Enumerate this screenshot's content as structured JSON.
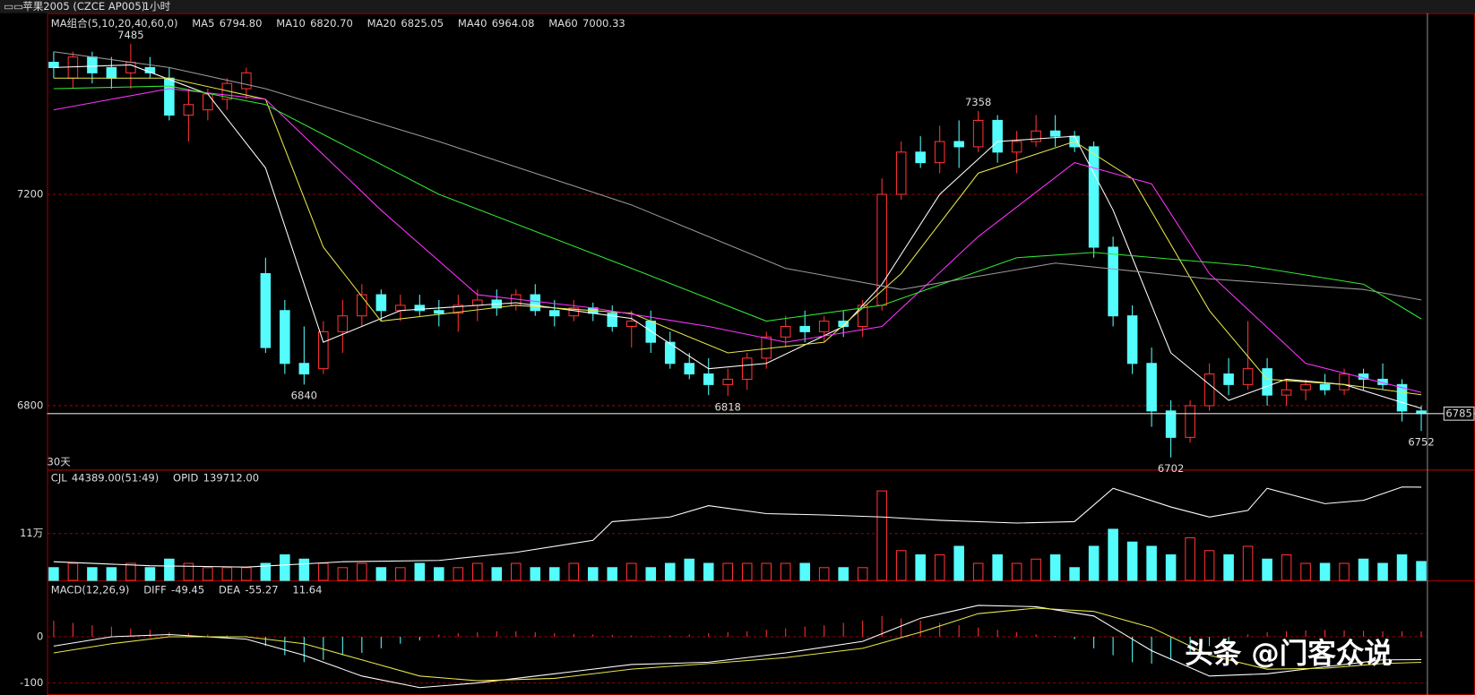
{
  "header": {
    "symbol": "苹果2005 (CZCE AP005)",
    "period": "1小时"
  },
  "chart_data": [
    {
      "type": "candlestick",
      "title": "MA组合(5,10,20,40,60,0)",
      "footnote": "30天",
      "up_color": "#ff3232",
      "down_color": "#54fcfc",
      "ylim": [
        6679,
        7543
      ],
      "yticks": [
        6800,
        7200
      ],
      "grid": true,
      "last_price": 6785,
      "ohlc": [
        [
          7450,
          7470,
          7420,
          7440
        ],
        [
          7420,
          7470,
          7400,
          7460
        ],
        [
          7460,
          7470,
          7410,
          7430
        ],
        [
          7440,
          7460,
          7400,
          7420
        ],
        [
          7430,
          7485,
          7400,
          7450
        ],
        [
          7440,
          7460,
          7420,
          7430
        ],
        [
          7420,
          7440,
          7340,
          7350
        ],
        [
          7350,
          7400,
          7300,
          7370
        ],
        [
          7360,
          7400,
          7340,
          7390
        ],
        [
          7380,
          7420,
          7360,
          7410
        ],
        [
          7400,
          7440,
          7380,
          7430
        ],
        [
          7050,
          7080,
          6900,
          6910
        ],
        [
          6980,
          7000,
          6860,
          6880
        ],
        [
          6880,
          6950,
          6840,
          6860
        ],
        [
          6870,
          6960,
          6860,
          6940
        ],
        [
          6940,
          7000,
          6900,
          6970
        ],
        [
          6970,
          7030,
          6950,
          7010
        ],
        [
          7010,
          7020,
          6960,
          6980
        ],
        [
          6980,
          7010,
          6960,
          6990
        ],
        [
          6990,
          7010,
          6970,
          6980
        ],
        [
          6980,
          7000,
          6950,
          6975
        ],
        [
          6975,
          7010,
          6940,
          6990
        ],
        [
          6990,
          7020,
          6960,
          7000
        ],
        [
          7000,
          7020,
          6970,
          6985
        ],
        [
          6990,
          7020,
          6980,
          7010
        ],
        [
          7010,
          7030,
          6970,
          6980
        ],
        [
          6980,
          7000,
          6950,
          6970
        ],
        [
          6970,
          7000,
          6960,
          6985
        ],
        [
          6985,
          6995,
          6960,
          6975
        ],
        [
          6975,
          6990,
          6940,
          6950
        ],
        [
          6950,
          6980,
          6910,
          6960
        ],
        [
          6960,
          6980,
          6900,
          6920
        ],
        [
          6920,
          6940,
          6870,
          6880
        ],
        [
          6880,
          6900,
          6850,
          6860
        ],
        [
          6860,
          6890,
          6820,
          6840
        ],
        [
          6840,
          6870,
          6818,
          6850
        ],
        [
          6850,
          6900,
          6830,
          6890
        ],
        [
          6890,
          6940,
          6870,
          6930
        ],
        [
          6930,
          6970,
          6910,
          6950
        ],
        [
          6950,
          6980,
          6920,
          6940
        ],
        [
          6940,
          6970,
          6920,
          6960
        ],
        [
          6960,
          6980,
          6930,
          6950
        ],
        [
          6950,
          7000,
          6930,
          6990
        ],
        [
          6990,
          7230,
          6980,
          7200
        ],
        [
          7200,
          7300,
          7190,
          7280
        ],
        [
          7280,
          7310,
          7250,
          7260
        ],
        [
          7260,
          7330,
          7240,
          7300
        ],
        [
          7300,
          7340,
          7250,
          7290
        ],
        [
          7290,
          7358,
          7280,
          7340
        ],
        [
          7340,
          7350,
          7260,
          7280
        ],
        [
          7280,
          7320,
          7240,
          7300
        ],
        [
          7300,
          7350,
          7290,
          7320
        ],
        [
          7320,
          7350,
          7290,
          7310
        ],
        [
          7310,
          7320,
          7280,
          7290
        ],
        [
          7290,
          7300,
          7080,
          7100
        ],
        [
          7100,
          7120,
          6950,
          6970
        ],
        [
          6970,
          6990,
          6860,
          6880
        ],
        [
          6880,
          6910,
          6760,
          6790
        ],
        [
          6790,
          6810,
          6702,
          6740
        ],
        [
          6740,
          6810,
          6730,
          6800
        ],
        [
          6800,
          6880,
          6790,
          6860
        ],
        [
          6860,
          6890,
          6820,
          6840
        ],
        [
          6840,
          6960,
          6830,
          6870
        ],
        [
          6870,
          6890,
          6800,
          6820
        ],
        [
          6820,
          6850,
          6800,
          6830
        ],
        [
          6830,
          6850,
          6810,
          6840
        ],
        [
          6840,
          6860,
          6820,
          6830
        ],
        [
          6830,
          6870,
          6820,
          6860
        ],
        [
          6860,
          6870,
          6830,
          6850
        ],
        [
          6850,
          6880,
          6830,
          6840
        ],
        [
          6840,
          6850,
          6770,
          6790
        ],
        [
          6790,
          6800,
          6752,
          6785
        ]
      ],
      "extremes": [
        {
          "index": 4,
          "value": 7485
        },
        {
          "index": 13,
          "value": 6840
        },
        {
          "index": 35,
          "value": 6818
        },
        {
          "index": 48,
          "value": 7358
        },
        {
          "index": 58,
          "value": 6702
        },
        {
          "index": 71,
          "value": 6752
        }
      ],
      "lines": [
        {
          "name": "MA5",
          "value_label": "6794.80",
          "color": "#ffffff",
          "x": [
            0,
            4,
            8,
            11,
            14,
            18,
            24,
            30,
            34,
            37,
            41,
            43,
            46,
            49,
            53,
            55,
            58,
            61,
            64,
            67,
            71
          ],
          "values": [
            7440,
            7445,
            7390,
            7250,
            6920,
            6980,
            6995,
            6965,
            6870,
            6880,
            6950,
            7030,
            7200,
            7300,
            7310,
            7170,
            6900,
            6810,
            6850,
            6840,
            6794.8
          ]
        },
        {
          "name": "MA10",
          "value_label": "6820.70",
          "color": "#e6e64c",
          "x": [
            0,
            6,
            11,
            14,
            17,
            24,
            30,
            35,
            40,
            44,
            48,
            53,
            56,
            60,
            63,
            67,
            71
          ],
          "values": [
            7420,
            7420,
            7380,
            7100,
            6960,
            6990,
            6975,
            6900,
            6920,
            7050,
            7240,
            7300,
            7230,
            6980,
            6850,
            6840,
            6820.7
          ]
        },
        {
          "name": "MA20",
          "value_label": "6825.05",
          "color": "#ff33ff",
          "x": [
            0,
            6,
            11,
            17,
            22,
            28,
            34,
            38,
            43,
            48,
            53,
            57,
            60,
            65,
            71
          ],
          "values": [
            7360,
            7400,
            7380,
            7170,
            7010,
            6985,
            6950,
            6920,
            6950,
            7120,
            7260,
            7220,
            7050,
            6880,
            6825.05
          ]
        },
        {
          "name": "MA40",
          "value_label": "6964.08",
          "color": "#33e633",
          "x": [
            0,
            6,
            11,
            20,
            30,
            37,
            43,
            50,
            54,
            62,
            68,
            71
          ],
          "values": [
            7400,
            7405,
            7370,
            7200,
            7060,
            6960,
            6990,
            7080,
            7090,
            7065,
            7030,
            6964.08
          ]
        },
        {
          "name": "MA60",
          "value_label": "7000.33",
          "color": "#999999",
          "x": [
            0,
            6,
            11,
            20,
            30,
            38,
            44,
            52,
            60,
            68,
            71
          ],
          "values": [
            7470,
            7440,
            7400,
            7300,
            7180,
            7060,
            7020,
            7070,
            7040,
            7020,
            7000.33
          ]
        }
      ]
    },
    {
      "type": "volume",
      "title": "CJL",
      "subtitle": "44389.00(51:49)",
      "ylim": [
        0,
        26
      ],
      "yticks": [
        {
          "value": 11,
          "label": "11万"
        }
      ],
      "grid": true,
      "y2lim": [
        0,
        166000
      ],
      "values": [
        3,
        4,
        3,
        3,
        4,
        3,
        5,
        4,
        3,
        3,
        3,
        4,
        6,
        5,
        4,
        3,
        4,
        3,
        3,
        4,
        3,
        3,
        4,
        3,
        4,
        3,
        3,
        4,
        3,
        3,
        4,
        3,
        4,
        5,
        4,
        4,
        4,
        4,
        4,
        4,
        3,
        3,
        3,
        21,
        7,
        6,
        6,
        8,
        4,
        6,
        4,
        5,
        6,
        3,
        8,
        12,
        9,
        8,
        6,
        10,
        7,
        6,
        8,
        5,
        6,
        4,
        4,
        4,
        5,
        4,
        6,
        4.4389
      ],
      "lines": [
        {
          "name": "OPID",
          "value_label": "139712.00",
          "color": "#ffffff",
          "axis": "y2",
          "x": [
            0,
            5,
            10,
            15,
            20,
            24,
            28,
            29,
            32,
            34,
            37,
            40,
            43,
            46,
            50,
            53,
            55,
            58,
            60,
            62,
            63,
            66,
            68,
            70,
            71
          ],
          "values": [
            28000,
            22000,
            20000,
            28000,
            30000,
            42000,
            60000,
            88000,
            95000,
            112000,
            100000,
            98000,
            95000,
            90000,
            86000,
            88000,
            138000,
            110000,
            95000,
            105000,
            138000,
            115000,
            120000,
            140000,
            139712
          ]
        }
      ]
    },
    {
      "type": "macd",
      "title": "MACD(12,26,9)",
      "value_label": "11.64",
      "ylim": [
        -126,
        122
      ],
      "yticks": [
        -100,
        0
      ],
      "grid": true,
      "values": [
        35,
        30,
        25,
        22,
        18,
        15,
        10,
        8,
        5,
        3,
        2,
        -20,
        -40,
        -55,
        -50,
        -40,
        -35,
        -25,
        -15,
        -8,
        5,
        8,
        10,
        12,
        12,
        10,
        8,
        6,
        5,
        4,
        3,
        2,
        3,
        5,
        8,
        10,
        12,
        15,
        18,
        22,
        25,
        30,
        35,
        45,
        40,
        35,
        30,
        25,
        20,
        15,
        10,
        5,
        2,
        -5,
        -25,
        -40,
        -55,
        -58,
        -50,
        -35,
        -20,
        -10,
        5,
        10,
        12,
        14,
        15,
        14,
        13,
        12,
        12,
        11.64
      ],
      "lines": [
        {
          "name": "DIFF",
          "value_label": "-49.45",
          "color": "#ffffff",
          "x": [
            0,
            3,
            6,
            10,
            13,
            16,
            19,
            22,
            26,
            30,
            34,
            38,
            42,
            45,
            48,
            51,
            54,
            57,
            60,
            63,
            66,
            69,
            71
          ],
          "values": [
            -20,
            0,
            5,
            -5,
            -40,
            -85,
            -110,
            -100,
            -80,
            -60,
            -55,
            -35,
            -10,
            40,
            68,
            65,
            45,
            -30,
            -85,
            -80,
            -65,
            -50,
            -49.45
          ]
        },
        {
          "name": "DEA",
          "value_label": "-55.27",
          "color": "#e6e64c",
          "x": [
            0,
            3,
            6,
            10,
            13,
            16,
            19,
            22,
            26,
            30,
            34,
            38,
            42,
            45,
            48,
            51,
            54,
            57,
            60,
            63,
            66,
            69,
            71
          ],
          "values": [
            -35,
            -15,
            0,
            0,
            -15,
            -50,
            -85,
            -95,
            -90,
            -70,
            -58,
            -45,
            -25,
            10,
            50,
            62,
            55,
            20,
            -40,
            -70,
            -68,
            -58,
            -55.27
          ]
        }
      ]
    }
  ],
  "watermark": "头条 @门客众说"
}
